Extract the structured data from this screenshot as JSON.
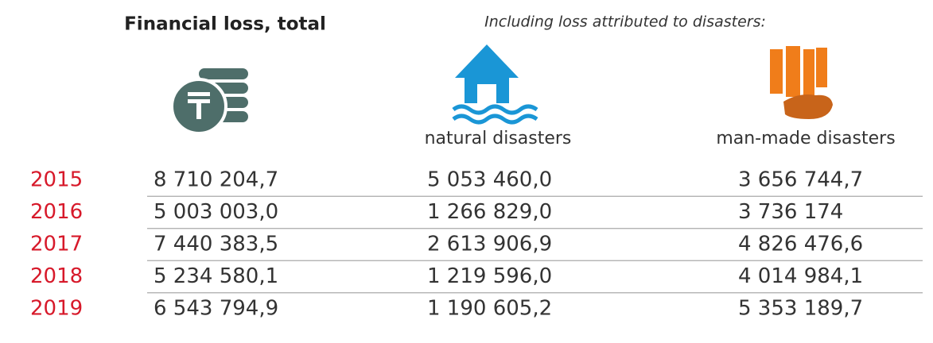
{
  "header": {
    "title": "Financial loss, total",
    "subtitle": "Including loss attributed to disasters:",
    "natural": "natural disasters",
    "manmade": "man-made disasters"
  },
  "table": {
    "rows": [
      [
        "2015",
        "8 710 204,7",
        "5 053 460,0",
        "3 656 744,7"
      ],
      [
        "2016",
        "5 003 003,0",
        "1 266 829,0",
        "3 736 174"
      ],
      [
        "2017",
        "7 440 383,5",
        "2 613 906,9",
        "4 826 476,6"
      ],
      [
        "2018",
        "5 234 580,1",
        "1 219 596,0",
        "4 014 984,1"
      ],
      [
        "2019",
        "6 543 794,9",
        "1 190 605,2",
        "5 353 189,7"
      ]
    ]
  }
}
